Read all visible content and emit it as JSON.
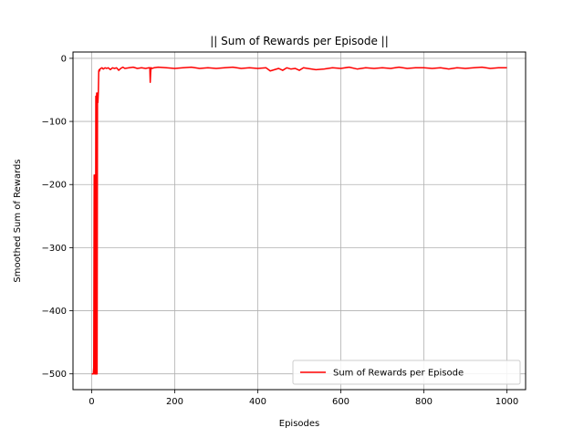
{
  "chart_data": {
    "type": "line",
    "title": "|| Sum of Rewards per Episode ||",
    "xlabel": "Episodes",
    "ylabel": "Smoothed Sum of Rewards",
    "xlim": [
      -45,
      1045
    ],
    "ylim": [
      -525,
      10
    ],
    "xticks": [
      0,
      200,
      400,
      600,
      800,
      1000
    ],
    "yticks": [
      0,
      -100,
      -200,
      -300,
      -400,
      -500
    ],
    "xtick_labels": [
      "0",
      "200",
      "400",
      "600",
      "800",
      "1000"
    ],
    "ytick_labels": [
      "0",
      "−100",
      "−200",
      "−300",
      "−400",
      "−500"
    ],
    "grid": true,
    "legend_position": "lower-right",
    "series": [
      {
        "name": "Sum of Rewards per Episode",
        "color": "#ff0000",
        "x": [
          0,
          2,
          4,
          5,
          6,
          7,
          8,
          9,
          10,
          11,
          12,
          13,
          14,
          15,
          16,
          17,
          18,
          19,
          20,
          22,
          25,
          28,
          32,
          36,
          40,
          45,
          50,
          55,
          60,
          65,
          70,
          75,
          80,
          90,
          100,
          110,
          120,
          130,
          138,
          140,
          141,
          142,
          143,
          146,
          150,
          160,
          180,
          200,
          220,
          240,
          260,
          280,
          300,
          320,
          340,
          360,
          380,
          400,
          420,
          430,
          440,
          450,
          460,
          470,
          480,
          490,
          500,
          510,
          520,
          540,
          560,
          580,
          600,
          620,
          640,
          660,
          680,
          700,
          720,
          740,
          760,
          780,
          800,
          820,
          840,
          860,
          880,
          900,
          920,
          940,
          960,
          980,
          1000
        ],
        "values": [
          -500,
          -500,
          -500,
          -490,
          -185,
          -500,
          -185,
          -500,
          -60,
          -500,
          -55,
          -500,
          -55,
          -70,
          -55,
          -20,
          -18,
          -20,
          -17,
          -16,
          -15,
          -17,
          -15,
          -16,
          -15,
          -18,
          -15,
          -16,
          -15,
          -19,
          -16,
          -14,
          -16,
          -15,
          -14,
          -16,
          -15,
          -16,
          -15,
          -15,
          -38,
          -22,
          -15,
          -16,
          -15,
          -14,
          -15,
          -16,
          -15,
          -14,
          -16,
          -15,
          -16,
          -15,
          -14,
          -16,
          -15,
          -16,
          -15,
          -20,
          -18,
          -16,
          -19,
          -15,
          -17,
          -16,
          -19,
          -15,
          -16,
          -18,
          -17,
          -15,
          -16,
          -14,
          -17,
          -15,
          -16,
          -15,
          -16,
          -14,
          -16,
          -15,
          -15,
          -16,
          -15,
          -17,
          -15,
          -16,
          -15,
          -14,
          -16,
          -15,
          -15
        ]
      }
    ]
  }
}
